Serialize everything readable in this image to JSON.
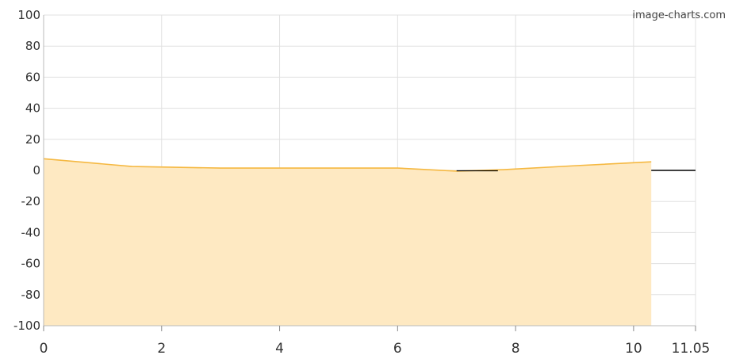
{
  "watermark": "image-charts.com",
  "chart_data": {
    "type": "area",
    "title": "",
    "xlabel": "",
    "ylabel": "",
    "xlim": [
      0,
      11.05
    ],
    "ylim": [
      -100,
      100
    ],
    "x_ticks": [
      0,
      2,
      4,
      6,
      8,
      10,
      11.05
    ],
    "x_tick_labels": [
      "0",
      "2",
      "4",
      "6",
      "8",
      "10",
      "11.05"
    ],
    "y_ticks": [
      100,
      80,
      60,
      40,
      20,
      0,
      -20,
      -40,
      -60,
      -80,
      -100
    ],
    "y_tick_labels": [
      "100",
      "80",
      "60",
      "40",
      "20",
      "0",
      "-20",
      "-40",
      "-60",
      "-80",
      "-100"
    ],
    "grid": true,
    "series": [
      {
        "x": [
          0,
          1.5,
          3,
          4.5,
          6,
          7,
          7.8,
          9,
          10.3
        ],
        "y": [
          7.5,
          2.5,
          1.5,
          1.5,
          1.5,
          -0.5,
          0.5,
          3,
          5.5
        ],
        "line_color": "#f5b841",
        "fill_color": "#fee9c2"
      }
    ],
    "zero_line_color": "#000000"
  }
}
